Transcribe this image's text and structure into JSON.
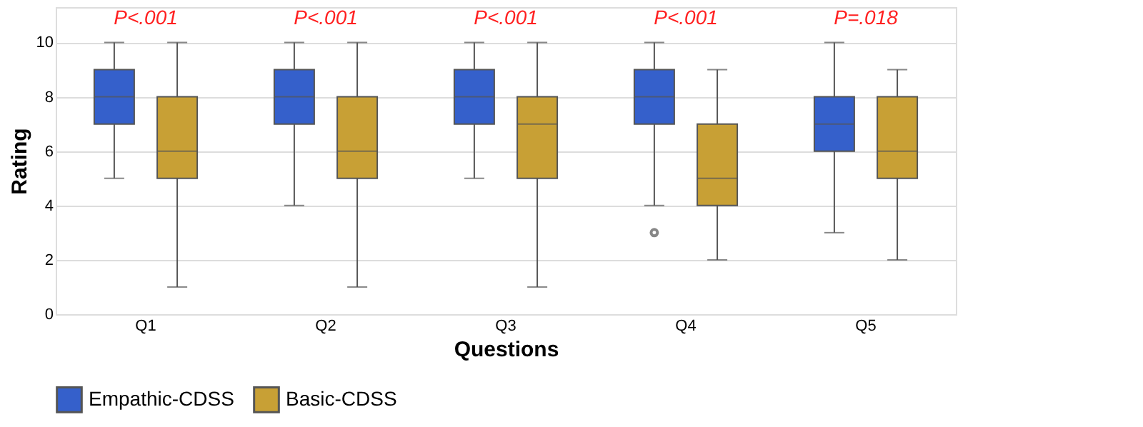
{
  "chart_data": {
    "type": "box",
    "xlabel": "Questions",
    "ylabel": "Rating",
    "categories": [
      "Q1",
      "Q2",
      "Q3",
      "Q4",
      "Q5"
    ],
    "ylim": [
      0,
      11.3
    ],
    "yticks": [
      0,
      2,
      4,
      6,
      8,
      10
    ],
    "grid": "y",
    "legend": "bottom",
    "series": [
      {
        "name": "Empathic-CDSS",
        "color": "#3560cb",
        "boxes": [
          {
            "low": 5,
            "q1": 7,
            "median": 8,
            "q3": 9,
            "high": 10
          },
          {
            "low": 4,
            "q1": 7,
            "median": 8,
            "q3": 9,
            "high": 10
          },
          {
            "low": 5,
            "q1": 7,
            "median": 8,
            "q3": 9,
            "high": 10
          },
          {
            "low": 4,
            "q1": 7,
            "median": 8,
            "q3": 9,
            "high": 10,
            "outliers": [
              3
            ]
          },
          {
            "low": 3,
            "q1": 6,
            "median": 7,
            "q3": 8,
            "high": 10
          }
        ]
      },
      {
        "name": "Basic-CDSS",
        "color": "#c8a035",
        "boxes": [
          {
            "low": 1,
            "q1": 5,
            "median": 6,
            "q3": 8,
            "high": 10
          },
          {
            "low": 1,
            "q1": 5,
            "median": 6,
            "q3": 8,
            "high": 10
          },
          {
            "low": 1,
            "q1": 5,
            "median": 7,
            "q3": 8,
            "high": 10
          },
          {
            "low": 2,
            "q1": 4,
            "median": 5,
            "q3": 7,
            "high": 9
          },
          {
            "low": 2,
            "q1": 5,
            "median": 6,
            "q3": 8,
            "high": 9
          }
        ]
      }
    ],
    "annotations": [
      "P<.001",
      "P<.001",
      "P<.001",
      "P<.001",
      "P=.018"
    ]
  }
}
